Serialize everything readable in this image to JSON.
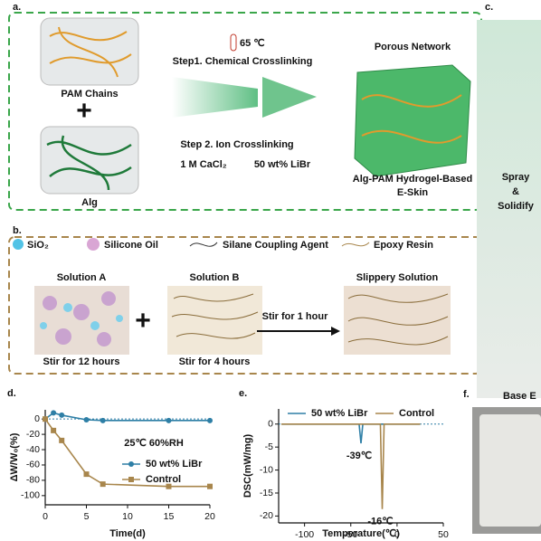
{
  "panel_a": {
    "label": "a.",
    "pam": "PAM Chains",
    "plus": "+",
    "alg": "Alg",
    "temperature": "65 ℃",
    "step1": "Step1. Chemical Crosslinking",
    "step2": "Step 2. Ion Crosslinking",
    "reagent1": "1 M CaCl₂",
    "reagent2": "50 wt% LiBr",
    "network": "Porous Network",
    "product": [
      "Alg-PAM Hydrogel-Based",
      "E-Skin"
    ]
  },
  "panel_b": {
    "label": "b.",
    "legend": [
      "SiO₂",
      "Silicone Oil",
      "Silane Coupling Agent",
      "Epoxy Resin"
    ],
    "solution_a": "Solution A",
    "solution_b": "Solution B",
    "result": "Slippery Solution",
    "plus": "+",
    "stir_ab": "Stir for 1 hour",
    "stir_a": "Stir for 12 hours",
    "stir_b": "Stir for 4 hours"
  },
  "panel_c": {
    "label": "c.",
    "text": [
      "Spray",
      "&",
      "Solidify"
    ]
  },
  "panel_f": {
    "label": "f.",
    "title": "Base E"
  },
  "chart_data": [
    {
      "type": "line",
      "panel_label": "d.",
      "xlabel": "Time(d)",
      "ylabel": "ΔW/W₀(%)",
      "annotation": "25℃ 60%RH",
      "x": [
        0,
        1,
        2,
        5,
        7,
        15,
        20
      ],
      "series": [
        {
          "name": "50 wt% LiBr",
          "color": "#2e7fa6",
          "marker": "circle",
          "values": [
            0,
            8,
            5,
            -1,
            -2,
            -2,
            -2
          ]
        },
        {
          "name": "Control",
          "color": "#a8864c",
          "marker": "square",
          "values": [
            0,
            -15,
            -28,
            -72,
            -85,
            -88,
            -88
          ]
        }
      ],
      "xlim": [
        0,
        20
      ],
      "xticks": [
        0,
        5,
        10,
        15,
        20
      ],
      "ylim": [
        -112,
        12
      ],
      "yticks": [
        0,
        -20,
        -40,
        -60,
        -80,
        -100
      ],
      "grid": false
    },
    {
      "type": "line",
      "panel_label": "e.",
      "xlabel": "Temperature(℃)",
      "ylabel": "DSC(mW/mg)",
      "annotations": [
        {
          "text": "-39℃",
          "x": -39,
          "y": -4.2
        },
        {
          "text": "-16℃",
          "x": -16,
          "y": -18.5
        }
      ],
      "series": [
        {
          "name": "50 wt% LiBr",
          "color": "#2e7fa6",
          "x": [
            -125,
            -41,
            -39,
            -37,
            25
          ],
          "values": [
            0,
            0,
            -4.2,
            0,
            0
          ]
        },
        {
          "name": "Control",
          "color": "#a8864c",
          "x": [
            -125,
            -18,
            -16,
            -14,
            25
          ],
          "values": [
            0,
            0,
            -18.5,
            0,
            0
          ]
        }
      ],
      "xlim": [
        -128,
        50
      ],
      "xticks": [
        -100,
        -50,
        0,
        50
      ],
      "ylim": [
        -21.5,
        3.3
      ],
      "yticks": [
        0,
        -5,
        -10,
        -15,
        -20
      ],
      "grid": false
    }
  ]
}
